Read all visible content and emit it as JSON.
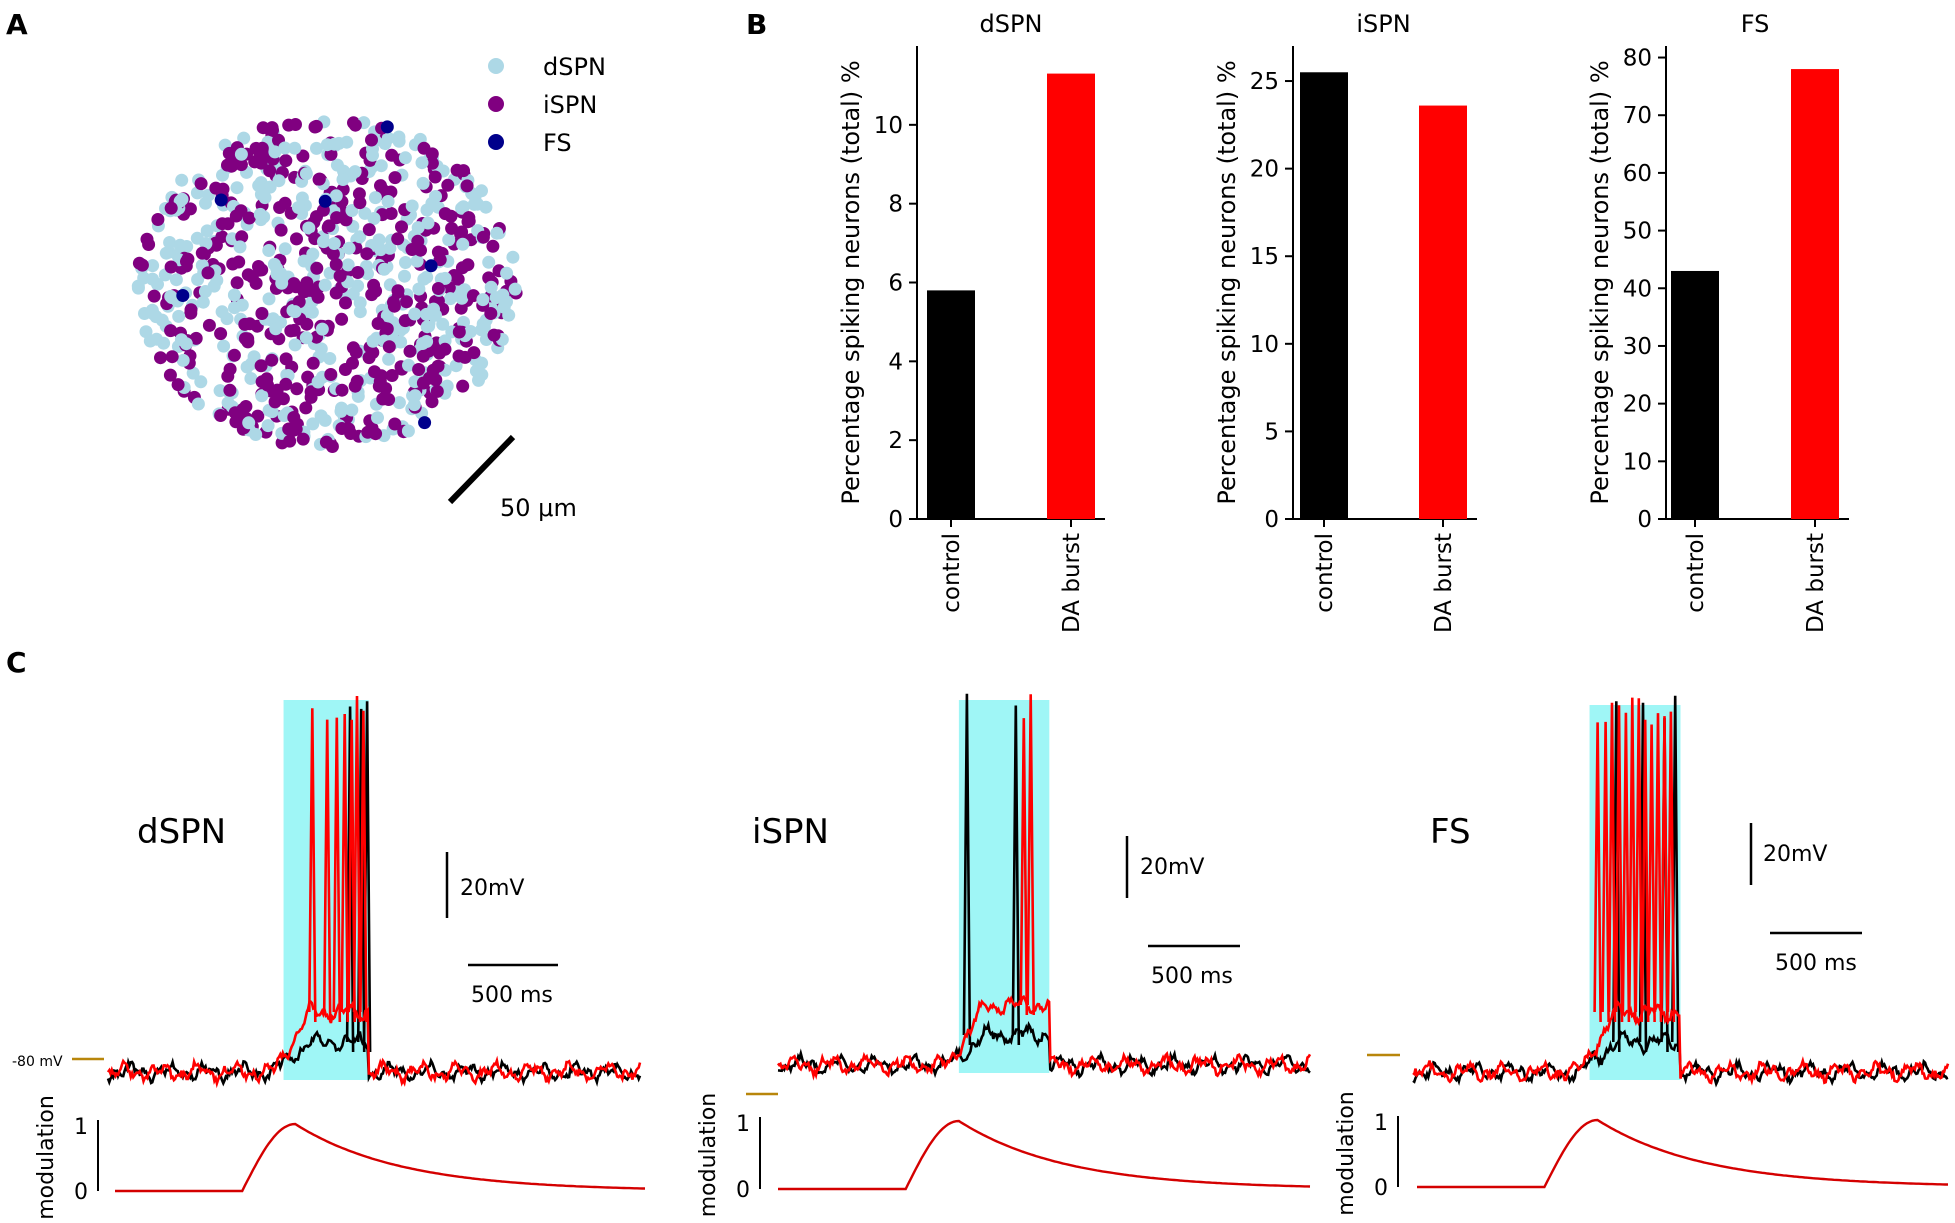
{
  "panel_labels": {
    "a": "A",
    "b": "B",
    "c": "C"
  },
  "colors": {
    "dSPN": "#add8e6",
    "iSPN": "#800080",
    "FS": "#00008b",
    "control": "#000000",
    "da_burst": "#ff0000",
    "stim_window": "#9ff6f6",
    "baseline_marker": "#b8860b",
    "modulation": "#d40000"
  },
  "chart_data": [
    {
      "type": "scatter",
      "panel": "A",
      "description_legend": [
        "dSPN",
        "iSPN",
        "FS"
      ],
      "scale_bar_label": "50  μm",
      "counts": {
        "dSPN": 420,
        "iSPN": 420,
        "FS": 6
      }
    },
    {
      "type": "bar",
      "panel": "B",
      "title": "dSPN",
      "categories": [
        "control",
        "DA burst"
      ],
      "values": [
        5.8,
        11.3
      ],
      "ylabel": "Percentage spiking neurons (total) %",
      "ylim": [
        0,
        12
      ],
      "yticks": [
        0,
        2,
        4,
        6,
        8,
        10
      ],
      "tick_labels": [
        "0",
        "2",
        "4",
        "6",
        "8",
        "10"
      ]
    },
    {
      "type": "bar",
      "panel": "B",
      "title": "iSPN",
      "categories": [
        "control",
        "DA burst"
      ],
      "values": [
        25.5,
        23.6
      ],
      "ylabel": "Percentage spiking neurons (total) %",
      "ylim": [
        0,
        27
      ],
      "yticks": [
        0,
        5,
        10,
        15,
        20,
        25
      ],
      "tick_labels": [
        "0",
        "5",
        "10",
        "15",
        "20",
        "25"
      ]
    },
    {
      "type": "bar",
      "panel": "B",
      "title": "FS",
      "categories": [
        "control",
        "DA burst"
      ],
      "values": [
        43,
        78
      ],
      "ylabel": "Percentage spiking neurons (total) %",
      "ylim": [
        0,
        82
      ],
      "yticks": [
        0,
        10,
        20,
        30,
        40,
        50,
        60,
        70,
        80
      ],
      "tick_labels": [
        "0",
        "10",
        "20",
        "30",
        "40",
        "50",
        "60",
        "70",
        "80"
      ]
    },
    {
      "type": "line",
      "panel": "C",
      "title": "dSPN",
      "series": [
        "control",
        "DA burst"
      ],
      "scale_v": "20mV",
      "scale_t": "500 ms",
      "baseline_label": "-80 mV",
      "modulation_label": "modulation",
      "modulation_ticks": [
        "0",
        "1"
      ],
      "stim_start_frac": 0.33,
      "stim_end_frac": 0.49,
      "mod_onset_frac": 0.24,
      "mod_peak_frac": 0.34,
      "spikes_control": [
        0.455,
        0.476,
        0.487
      ],
      "spikes_burst": [
        0.384,
        0.412,
        0.43,
        0.445,
        0.458,
        0.468,
        0.48
      ]
    },
    {
      "type": "line",
      "panel": "C",
      "title": "iSPN",
      "series": [
        "control",
        "DA burst"
      ],
      "scale_v": "20mV",
      "scale_t": "500 ms",
      "modulation_label": "modulation",
      "modulation_ticks": [
        "0",
        "1"
      ],
      "stim_start_frac": 0.34,
      "stim_end_frac": 0.51,
      "mod_onset_frac": 0.24,
      "mod_peak_frac": 0.34,
      "spikes_control": [
        0.355,
        0.447
      ],
      "spikes_burst": [
        0.462,
        0.475
      ]
    },
    {
      "type": "line",
      "panel": "C",
      "title": "FS",
      "series": [
        "control",
        "DA burst"
      ],
      "scale_v": "20mV",
      "scale_t": "500 ms",
      "modulation_label": "modulation",
      "modulation_ticks": [
        "0",
        "1"
      ],
      "stim_start_frac": 0.33,
      "stim_end_frac": 0.5,
      "mod_onset_frac": 0.24,
      "mod_peak_frac": 0.34,
      "spikes_control": [
        0.38,
        0.43,
        0.47,
        0.49
      ],
      "spikes_burst": [
        0.345,
        0.36,
        0.372,
        0.385,
        0.398,
        0.41,
        0.422,
        0.434,
        0.446,
        0.458,
        0.47,
        0.482
      ]
    }
  ]
}
